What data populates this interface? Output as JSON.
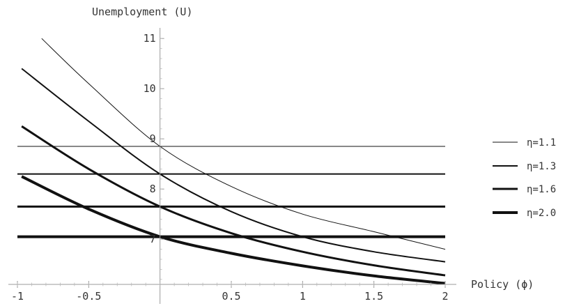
{
  "chart_data": {
    "type": "line",
    "title": "",
    "xlabel": "Policy (ϕ)",
    "ylabel": "Unemployment (U)",
    "xlim": [
      -1,
      2
    ],
    "ylim": [
      6.1,
      11.1
    ],
    "x_ticks": [
      {
        "value": -1,
        "label": "-1"
      },
      {
        "value": -0.5,
        "label": "-0.5"
      },
      {
        "value": 0.5,
        "label": "0.5"
      },
      {
        "value": 1,
        "label": "1"
      },
      {
        "value": 1.5,
        "label": "1.5"
      },
      {
        "value": 2,
        "label": "2"
      }
    ],
    "y_ticks": [
      {
        "value": 7,
        "label": "7"
      },
      {
        "value": 8,
        "label": "8"
      },
      {
        "value": 9,
        "label": "9"
      },
      {
        "value": 10,
        "label": "10"
      },
      {
        "value": 11,
        "label": "11"
      }
    ],
    "grid": false,
    "legend_position": "right",
    "series": [
      {
        "name": "η=1.1",
        "stroke": 1,
        "curve": {
          "x": [
            -0.83,
            -0.5,
            0,
            0.5,
            1,
            1.5,
            2
          ],
          "y": [
            11.0,
            10.1,
            8.85,
            8.05,
            7.5,
            7.15,
            6.8
          ]
        },
        "horizontal": 8.85
      },
      {
        "name": "η=1.3",
        "stroke": 2,
        "curve": {
          "x": [
            -0.97,
            -0.5,
            0,
            0.5,
            1,
            1.5,
            2
          ],
          "y": [
            10.4,
            9.35,
            8.3,
            7.55,
            7.05,
            6.75,
            6.55
          ]
        },
        "horizontal": 8.3
      },
      {
        "name": "η=1.6",
        "stroke": 3,
        "curve": {
          "x": [
            -0.97,
            -0.5,
            0,
            0.5,
            1,
            1.5,
            2
          ],
          "y": [
            9.25,
            8.4,
            7.65,
            7.12,
            6.75,
            6.48,
            6.28
          ]
        },
        "horizontal": 7.65
      },
      {
        "name": "η=2.0",
        "stroke": 4,
        "curve": {
          "x": [
            -0.97,
            -0.5,
            0,
            0.5,
            1,
            1.5,
            2
          ],
          "y": [
            8.25,
            7.6,
            7.05,
            6.72,
            6.47,
            6.27,
            6.12
          ]
        },
        "horizontal": 7.05
      }
    ]
  }
}
